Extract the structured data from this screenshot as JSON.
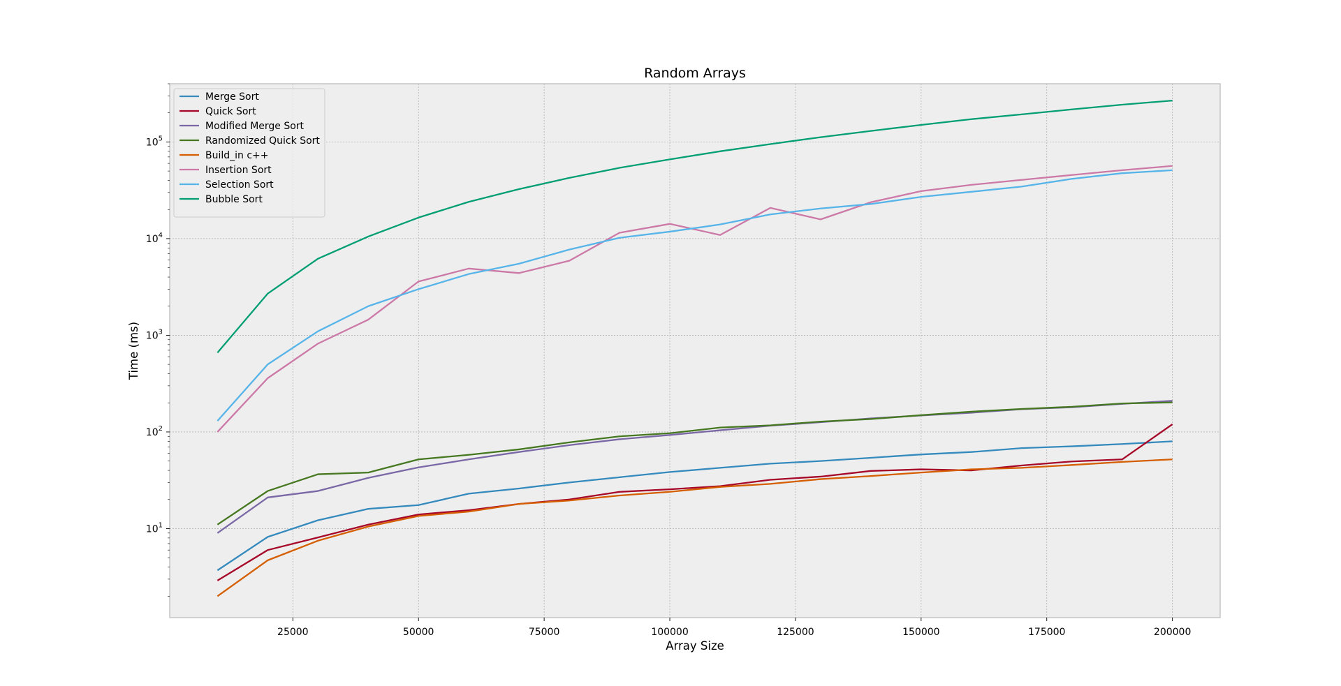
{
  "chart_data": {
    "type": "line",
    "title": "Random Arrays",
    "xlabel": "Array Size",
    "ylabel": "Time (ms)",
    "yscale": "log",
    "xlim": [
      500,
      209500
    ],
    "ylim": [
      1.2,
      400000
    ],
    "x_ticks": [
      25000,
      50000,
      75000,
      100000,
      125000,
      150000,
      175000,
      200000
    ],
    "y_ticks": [
      10,
      100,
      1000,
      10000,
      100000
    ],
    "y_tick_labels": [
      {
        "base": "10",
        "exp": "1"
      },
      {
        "base": "10",
        "exp": "2"
      },
      {
        "base": "10",
        "exp": "3"
      },
      {
        "base": "10",
        "exp": "4"
      },
      {
        "base": "10",
        "exp": "5"
      }
    ],
    "grid": true,
    "legend_position": "top-left",
    "x": [
      10000,
      20000,
      30000,
      40000,
      50000,
      60000,
      70000,
      80000,
      90000,
      100000,
      110000,
      120000,
      130000,
      140000,
      150000,
      160000,
      170000,
      180000,
      190000,
      200000
    ],
    "series": [
      {
        "name": "Merge Sort",
        "color": "#348ABD",
        "values": [
          3.7,
          8.2,
          12.2,
          16,
          17.5,
          23,
          26,
          30,
          34,
          38.5,
          42.5,
          47,
          50,
          54,
          58.5,
          62,
          68,
          71,
          75,
          80
        ]
      },
      {
        "name": "Quick Sort",
        "color": "#A60628",
        "values": [
          2.9,
          6,
          8.1,
          11,
          14,
          15.5,
          18,
          20,
          24,
          25.5,
          27.5,
          32,
          34.5,
          39.5,
          41,
          40,
          45,
          49.5,
          52,
          120
        ]
      },
      {
        "name": "Modified Merge Sort",
        "color": "#7A68A6",
        "values": [
          9,
          21,
          24.5,
          33.5,
          43,
          52,
          62,
          73,
          84,
          93,
          104,
          116,
          126,
          138,
          148,
          158,
          172,
          180,
          195,
          210
        ]
      },
      {
        "name": "Randomized Quick Sort",
        "color": "#467821",
        "values": [
          11,
          24.5,
          36.5,
          38,
          52,
          58,
          66,
          78,
          90,
          97,
          111,
          117,
          128,
          136,
          149,
          162,
          173,
          182,
          197,
          202
        ]
      },
      {
        "name": "Build_in c++",
        "color": "#D55E00",
        "values": [
          2,
          4.7,
          7.5,
          10.5,
          13.5,
          15,
          18,
          19.5,
          22,
          24,
          27,
          29,
          32.5,
          35,
          38,
          41,
          42.5,
          45.5,
          49,
          52
        ]
      },
      {
        "name": "Insertion Sort",
        "color": "#CC79A7",
        "values": [
          100,
          360,
          820,
          1450,
          3600,
          4900,
          4400,
          5900,
          11500,
          14200,
          10900,
          20800,
          15800,
          23800,
          31000,
          36000,
          40500,
          45500,
          51000,
          56500
        ]
      },
      {
        "name": "Selection Sort",
        "color": "#56B4E9",
        "values": [
          130,
          500,
          1100,
          2000,
          3000,
          4300,
          5500,
          7700,
          10200,
          11800,
          14000,
          17800,
          20500,
          22800,
          27000,
          30500,
          34500,
          41500,
          47500,
          51000
        ]
      },
      {
        "name": "Bubble Sort",
        "color": "#009E73",
        "values": [
          660,
          2700,
          6200,
          10500,
          16500,
          24000,
          32500,
          42500,
          54000,
          66000,
          80000,
          95000,
          112000,
          130000,
          150000,
          172000,
          193000,
          217000,
          243000,
          268000
        ]
      }
    ]
  }
}
